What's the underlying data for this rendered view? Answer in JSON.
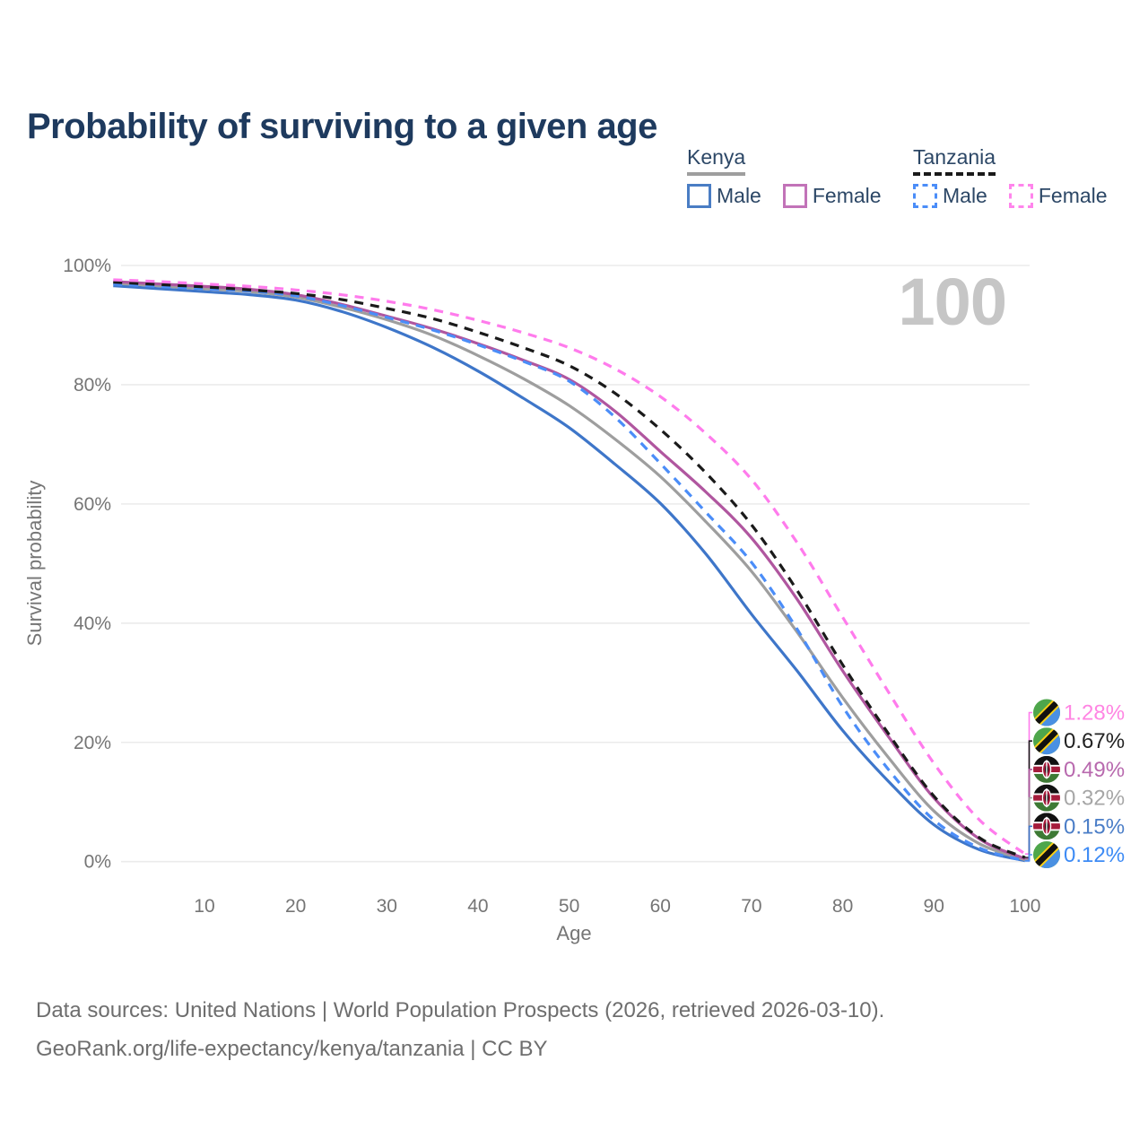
{
  "title": "Probability of surviving to a given age",
  "watermark_age": "100",
  "legend": {
    "groups": [
      {
        "label": "Kenya",
        "underline_style": "solid",
        "underline_color": "#9e9e9e",
        "items": [
          {
            "label": "Male",
            "color": "#4a7dc4",
            "dashed": false
          },
          {
            "label": "Female",
            "color": "#c273b8",
            "dashed": false
          }
        ]
      },
      {
        "label": "Tanzania",
        "underline_style": "dashed",
        "underline_color": "#1a1a1a",
        "items": [
          {
            "label": "Male",
            "color": "#4b8df8",
            "dashed": true
          },
          {
            "label": "Female",
            "color": "#ff85ec",
            "dashed": true
          }
        ]
      }
    ]
  },
  "chart_data": {
    "type": "line",
    "title": "Probability of surviving to a given age",
    "xlabel": "Age",
    "ylabel": "Survival probability",
    "xlim": [
      0,
      100
    ],
    "ylim": [
      0,
      100
    ],
    "grid": true,
    "legend_position": "top-right",
    "x_ticks": [
      10,
      20,
      30,
      40,
      50,
      60,
      70,
      80,
      90,
      100
    ],
    "y_ticks": [
      0,
      20,
      40,
      60,
      80,
      100
    ],
    "y_tick_labels": [
      "0%",
      "20%",
      "40%",
      "60%",
      "80%",
      "100%"
    ],
    "x": [
      0,
      5,
      10,
      15,
      20,
      25,
      30,
      35,
      40,
      45,
      50,
      55,
      60,
      65,
      70,
      75,
      80,
      85,
      90,
      95,
      100
    ],
    "series": [
      {
        "name": "Kenya Male",
        "country": "Kenya",
        "sex": "Male",
        "color": "#3e76c9",
        "label_color": "#4a7dc7",
        "dashed": false,
        "flag": "kenya",
        "end_label": "0.15%",
        "values": [
          96.6,
          96.1,
          95.6,
          95.1,
          94.2,
          92.3,
          89.6,
          86.3,
          82.3,
          77.7,
          72.8,
          66.7,
          60.1,
          51.6,
          41.5,
          32.0,
          22.0,
          13.5,
          6.2,
          2.0,
          0.15
        ]
      },
      {
        "name": "Kenya Both sexes",
        "country": "Kenya",
        "sex": "Both",
        "color": "#9e9e9e",
        "label_color": "#a6a6a6",
        "dashed": false,
        "flag": "kenya",
        "end_label": "0.32%",
        "values": [
          97.0,
          96.6,
          96.1,
          95.6,
          94.7,
          93.0,
          90.9,
          88.3,
          84.9,
          81.0,
          76.5,
          70.9,
          64.6,
          57.0,
          48.7,
          38.5,
          27.5,
          17.5,
          8.5,
          3.0,
          0.32
        ]
      },
      {
        "name": "Kenya Female",
        "country": "Kenya",
        "sex": "Female",
        "color": "#b0569f",
        "label_color": "#b869ae",
        "dashed": false,
        "flag": "kenya",
        "end_label": "0.49%",
        "values": [
          97.3,
          96.9,
          96.5,
          96.0,
          95.1,
          93.5,
          91.5,
          89.4,
          86.9,
          84.1,
          80.9,
          75.6,
          68.8,
          62.0,
          54.3,
          44.0,
          32.0,
          21.0,
          10.7,
          3.8,
          0.49
        ]
      },
      {
        "name": "Tanzania Male",
        "country": "Tanzania",
        "sex": "Male",
        "color": "#4b8df8",
        "label_color": "#3d8bf5",
        "dashed": true,
        "flag": "tanzania",
        "end_label": "0.12%",
        "values": [
          96.9,
          96.5,
          96.1,
          95.7,
          94.9,
          93.3,
          91.3,
          89.2,
          86.7,
          83.9,
          80.6,
          74.6,
          66.8,
          58.6,
          50.2,
          39.0,
          26.0,
          15.5,
          7.0,
          2.3,
          0.12
        ]
      },
      {
        "name": "Tanzania Both sexes",
        "country": "Tanzania",
        "sex": "Both",
        "color": "#1a1a1a",
        "label_color": "#222222",
        "dashed": true,
        "flag": "tanzania",
        "end_label": "0.67%",
        "values": [
          97.2,
          96.8,
          96.4,
          95.9,
          95.3,
          94.3,
          92.8,
          91.1,
          88.8,
          86.2,
          83.2,
          78.6,
          72.5,
          65.2,
          56.5,
          45.5,
          33.0,
          21.5,
          11.0,
          4.0,
          0.67
        ]
      },
      {
        "name": "Tanzania Female",
        "country": "Tanzania",
        "sex": "Female",
        "color": "#ff7bec",
        "label_color": "#ff85e3",
        "dashed": true,
        "flag": "tanzania",
        "end_label": "1.28%",
        "values": [
          97.6,
          97.3,
          96.9,
          96.5,
          95.9,
          95.1,
          94.0,
          92.6,
          90.8,
          88.7,
          86.2,
          82.7,
          78.0,
          71.8,
          64.1,
          53.5,
          41.0,
          28.5,
          16.5,
          7.0,
          1.28
        ]
      }
    ],
    "end_labels_sorted": [
      "1.28%",
      "0.67%",
      "0.49%",
      "0.32%",
      "0.15%",
      "0.12%"
    ]
  },
  "flag_colors": {
    "tanzania": {
      "green": "#4ea64b",
      "yellow": "#fcd116",
      "black": "#111111",
      "blue": "#4a90e2"
    },
    "kenya": {
      "black": "#111111",
      "white": "#ffffff",
      "red": "#a51c3c",
      "green": "#3e7a35"
    }
  },
  "footer": {
    "line1": "Data sources: United Nations | World Population Prospects (2026, retrieved 2026-03-10).",
    "line2": "GeoRank.org/life-expectancy/kenya/tanzania | CC BY"
  }
}
